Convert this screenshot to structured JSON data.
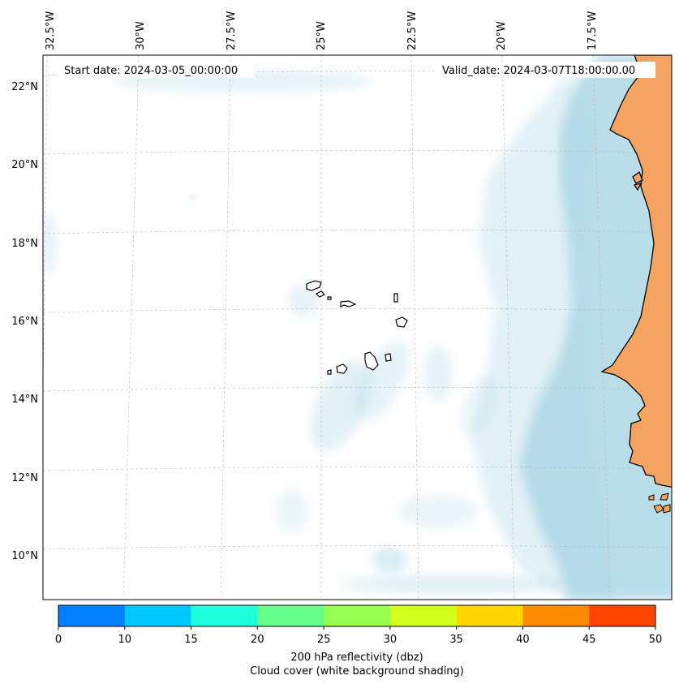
{
  "map": {
    "start_date": "Start date: 2024-03-05_00:00:00",
    "valid_date": "Valid_date: 2024-03-07T18:00:00.00",
    "lon_labels": [
      "32.5°W",
      "30°W",
      "27.5°W",
      "25°W",
      "22.5°W",
      "20°W",
      "17.5°W"
    ],
    "lat_labels": [
      "22°N",
      "20°N",
      "18°N",
      "16°N",
      "14°N",
      "12°N",
      "10°N"
    ],
    "land_color": "#f4a460",
    "cloud_color": "#add8e6",
    "gridlines": true
  },
  "colorbar": {
    "ticks": [
      "0",
      "10",
      "15",
      "20",
      "25",
      "30",
      "35",
      "40",
      "45",
      "50"
    ],
    "colors": [
      "#007fff",
      "#00c8ff",
      "#1effdc",
      "#64ff8c",
      "#96ff50",
      "#d2ff1e",
      "#ffd700",
      "#ff8c00",
      "#ff4500"
    ],
    "label_line1": "200 hPa reflectivity (dbz)",
    "label_line2": "Cloud cover (white background shading)"
  }
}
